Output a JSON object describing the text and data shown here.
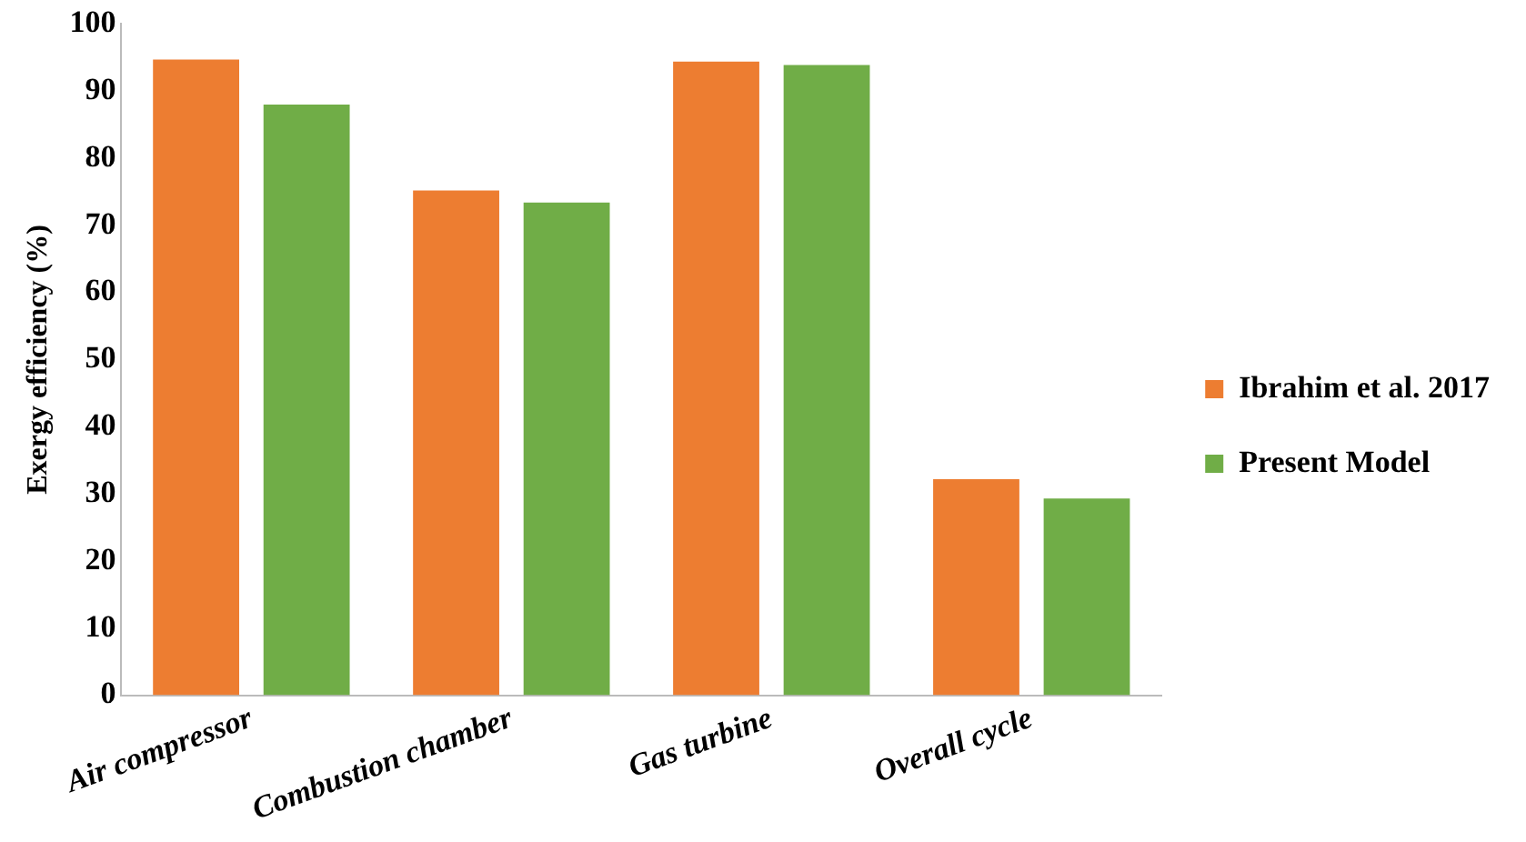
{
  "chart_data": {
    "type": "bar",
    "ylabel": "Exergy efficiency (%)",
    "categories": [
      "Air compressor",
      "Combustion chamber",
      "Gas turbine",
      "Overall cycle"
    ],
    "series": [
      {
        "name": "Ibrahim et al. 2017",
        "color": "#ed7d31",
        "values": [
          94.7,
          75.2,
          94.4,
          32.2
        ]
      },
      {
        "name": "Present Model",
        "color": "#70ad47",
        "values": [
          88.0,
          73.4,
          93.9,
          29.3
        ]
      }
    ],
    "ylim": [
      0,
      100
    ],
    "yticks": [
      0,
      10,
      20,
      30,
      40,
      50,
      60,
      70,
      80,
      90,
      100
    ],
    "grid": false,
    "legend": "right"
  }
}
